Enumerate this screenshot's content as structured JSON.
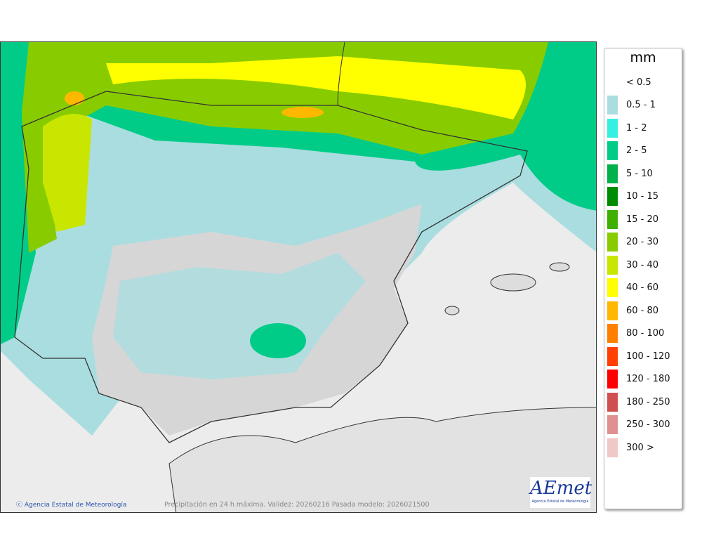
{
  "map": {
    "credit": "Agencia Estatal de Meteorología",
    "caption": "Precipitación en 24 h máxima. Validez: 20260216 Pasada modelo: 2026021500",
    "logo_text": "AEmet",
    "logo_subtitle": "Agencia Estatal de Meteorología"
  },
  "legend": {
    "unit": "mm",
    "items": [
      {
        "label": "< 0.5",
        "color": ""
      },
      {
        "label": "0.5 - 1",
        "color": "#aadde0"
      },
      {
        "label": "1 - 2",
        "color": "#33f0e0"
      },
      {
        "label": "2 - 5",
        "color": "#00cc88"
      },
      {
        "label": "5 - 10",
        "color": "#00b048"
      },
      {
        "label": "10 - 15",
        "color": "#008c00"
      },
      {
        "label": "15 - 20",
        "color": "#40b000"
      },
      {
        "label": "20 - 30",
        "color": "#88cc00"
      },
      {
        "label": "30 - 40",
        "color": "#c8e600"
      },
      {
        "label": "40 - 60",
        "color": "#ffff00"
      },
      {
        "label": "60 - 80",
        "color": "#ffb800"
      },
      {
        "label": "80 - 100",
        "color": "#ff8000"
      },
      {
        "label": "100 - 120",
        "color": "#ff4000"
      },
      {
        "label": "120 - 180",
        "color": "#ff0000"
      },
      {
        "label": "180 - 250",
        "color": "#d05050"
      },
      {
        "label": "250 - 300",
        "color": "#e09090"
      },
      {
        "label": "300 >",
        "color": "#f0c8c8"
      }
    ]
  }
}
